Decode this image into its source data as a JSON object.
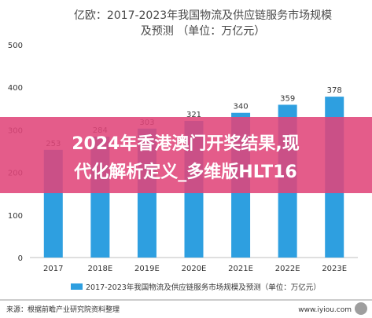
{
  "chart_data": {
    "type": "bar",
    "title_line1": "亿欧：2017-2023年我国物流及供应链服务市场规模",
    "title_line2": "及预测 （单位：万亿元）",
    "categories": [
      "2017",
      "2018E",
      "2019E",
      "2020E",
      "2021E",
      "2022E",
      "2023E"
    ],
    "series": [
      {
        "name": "2017-2023年我国物流及供应链服务市场规模及预测（单位：万亿元）",
        "values": [
          253,
          284,
          303,
          321,
          340,
          359,
          378
        ],
        "color": "#2E9FE0"
      }
    ],
    "yticks": [
      0,
      100,
      200,
      300,
      400,
      500
    ],
    "ylim": [
      0,
      500
    ],
    "grid": false,
    "legend": "bottom"
  },
  "footer": {
    "source": "来源：根据前瞻产业研究院资料整理",
    "watermark": "www.iyiou.com"
  },
  "overlay": {
    "line1": "2024年香港澳门开奖结果,现",
    "line2": "代化解析定义_多维版HLT16",
    "color": "#E0457A"
  }
}
